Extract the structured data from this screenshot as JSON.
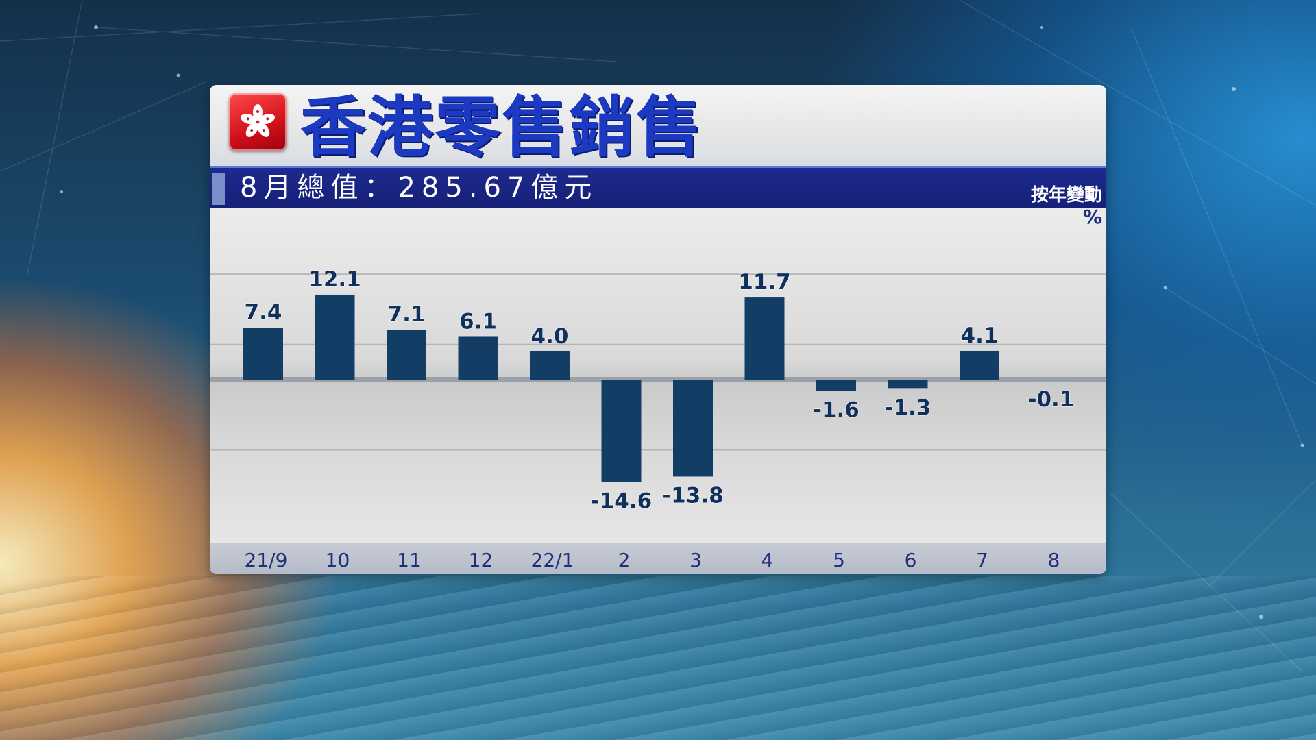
{
  "header": {
    "title": "香港零售銷售",
    "subtitle": "8月總值：285.67億元",
    "yoy_label": "按年變動",
    "unit": "%"
  },
  "colors": {
    "bar": "#123e66",
    "title": "#1c39c2",
    "subbar": "#1a2585",
    "label": "#0f2f5c"
  },
  "chart_data": {
    "type": "bar",
    "categories": [
      "21/9",
      "10",
      "11",
      "12",
      "22/1",
      "2",
      "3",
      "4",
      "5",
      "6",
      "7",
      "8"
    ],
    "values": [
      7.4,
      12.1,
      7.1,
      6.1,
      4.0,
      -14.6,
      -13.8,
      11.7,
      -1.6,
      -1.3,
      4.1,
      -0.1
    ],
    "data_labels": [
      "7.4",
      "12.1",
      "7.1",
      "6.1",
      "4.0",
      "-14.6",
      "-13.8",
      "11.7",
      "-1.6",
      "-1.3",
      "4.1",
      "-0.1"
    ],
    "title": "香港零售銷售",
    "ylabel": "%",
    "ylim": [
      -20,
      20
    ],
    "grid": true,
    "legend": "none"
  }
}
